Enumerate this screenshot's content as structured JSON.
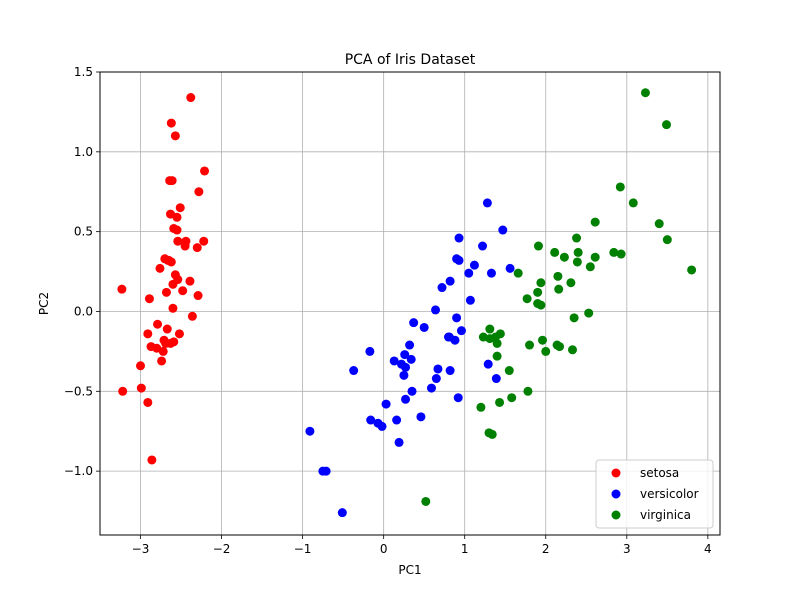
{
  "chart_data": {
    "type": "scatter",
    "title": "PCA of Iris Dataset",
    "xlabel": "PC1",
    "ylabel": "PC2",
    "xlim": [
      -3.5,
      4.15
    ],
    "ylim": [
      -1.4,
      1.5
    ],
    "xticks": [
      -3,
      -2,
      -1,
      0,
      1,
      2,
      3,
      4
    ],
    "xtick_labels": [
      "−3",
      "−2",
      "−1",
      "0",
      "1",
      "2",
      "3",
      "4"
    ],
    "yticks": [
      -1.0,
      -0.5,
      0.0,
      0.5,
      1.0,
      1.5
    ],
    "ytick_labels": [
      "−1.0",
      "−0.5",
      "0.0",
      "0.5",
      "1.0",
      "1.5"
    ],
    "grid": true,
    "legend_position": "lower-right",
    "series": [
      {
        "name": "setosa",
        "color": "#ff0000",
        "points": [
          [
            -2.38,
            1.34
          ],
          [
            -2.62,
            1.18
          ],
          [
            -2.57,
            1.1
          ],
          [
            -2.21,
            0.88
          ],
          [
            -2.64,
            0.82
          ],
          [
            -2.61,
            0.82
          ],
          [
            -2.28,
            0.75
          ],
          [
            -2.51,
            0.65
          ],
          [
            -2.63,
            0.61
          ],
          [
            -2.55,
            0.59
          ],
          [
            -2.59,
            0.52
          ],
          [
            -2.55,
            0.51
          ],
          [
            -2.44,
            0.44
          ],
          [
            -2.22,
            0.44
          ],
          [
            -2.54,
            0.44
          ],
          [
            -2.45,
            0.41
          ],
          [
            -2.3,
            0.4
          ],
          [
            -2.7,
            0.33
          ],
          [
            -2.65,
            0.32
          ],
          [
            -2.62,
            0.31
          ],
          [
            -2.76,
            0.27
          ],
          [
            -2.57,
            0.23
          ],
          [
            -2.54,
            0.2
          ],
          [
            -2.39,
            0.19
          ],
          [
            -2.6,
            0.17
          ],
          [
            -2.48,
            0.13
          ],
          [
            -2.68,
            0.12
          ],
          [
            -2.29,
            0.1
          ],
          [
            -2.89,
            0.08
          ],
          [
            -2.6,
            0.02
          ],
          [
            -2.36,
            -0.03
          ],
          [
            -2.79,
            -0.08
          ],
          [
            -2.67,
            -0.11
          ],
          [
            -2.52,
            -0.14
          ],
          [
            -2.91,
            -0.14
          ],
          [
            -2.71,
            -0.18
          ],
          [
            -2.59,
            -0.19
          ],
          [
            -2.63,
            -0.2
          ],
          [
            -2.87,
            -0.22
          ],
          [
            -2.8,
            -0.23
          ],
          [
            -2.72,
            -0.25
          ],
          [
            -2.74,
            -0.31
          ],
          [
            -3.0,
            -0.34
          ],
          [
            -2.99,
            -0.48
          ],
          [
            -3.22,
            -0.5
          ],
          [
            -2.91,
            -0.57
          ],
          [
            -2.86,
            -0.93
          ],
          [
            -3.23,
            0.14
          ],
          [
            -2.69,
            -0.2
          ],
          [
            -2.66,
            0.32
          ]
        ]
      },
      {
        "name": "versicolor",
        "color": "#0000ff",
        "points": [
          [
            1.28,
            0.68
          ],
          [
            1.47,
            0.51
          ],
          [
            0.93,
            0.46
          ],
          [
            1.22,
            0.41
          ],
          [
            0.9,
            0.33
          ],
          [
            0.93,
            0.32
          ],
          [
            1.12,
            0.29
          ],
          [
            1.56,
            0.27
          ],
          [
            1.33,
            0.24
          ],
          [
            1.05,
            0.24
          ],
          [
            0.82,
            0.19
          ],
          [
            0.72,
            0.15
          ],
          [
            1.07,
            0.07
          ],
          [
            0.64,
            0.01
          ],
          [
            0.9,
            -0.04
          ],
          [
            0.37,
            -0.07
          ],
          [
            0.5,
            -0.1
          ],
          [
            0.96,
            -0.12
          ],
          [
            0.81,
            -0.16
          ],
          [
            0.88,
            -0.18
          ],
          [
            0.32,
            -0.21
          ],
          [
            -0.17,
            -0.25
          ],
          [
            0.26,
            -0.27
          ],
          [
            0.34,
            -0.3
          ],
          [
            0.13,
            -0.31
          ],
          [
            0.22,
            -0.33
          ],
          [
            0.27,
            -0.35
          ],
          [
            0.67,
            -0.36
          ],
          [
            1.29,
            -0.33
          ],
          [
            -0.37,
            -0.37
          ],
          [
            0.82,
            -0.37
          ],
          [
            0.25,
            -0.4
          ],
          [
            0.65,
            -0.42
          ],
          [
            1.39,
            -0.42
          ],
          [
            0.59,
            -0.48
          ],
          [
            0.35,
            -0.5
          ],
          [
            0.92,
            -0.54
          ],
          [
            0.27,
            -0.55
          ],
          [
            0.03,
            -0.58
          ],
          [
            0.46,
            -0.66
          ],
          [
            0.16,
            -0.68
          ],
          [
            -0.16,
            -0.68
          ],
          [
            -0.07,
            -0.7
          ],
          [
            -0.02,
            -0.72
          ],
          [
            0.19,
            -0.82
          ],
          [
            -0.91,
            -0.75
          ],
          [
            -0.75,
            -1.0
          ],
          [
            -0.71,
            -1.0
          ],
          [
            -0.51,
            -1.26
          ],
          [
            0.8,
            -0.16
          ]
        ]
      },
      {
        "name": "virginica",
        "color": "#008000",
        "points": [
          [
            3.23,
            1.37
          ],
          [
            3.49,
            1.17
          ],
          [
            2.92,
            0.78
          ],
          [
            3.08,
            0.68
          ],
          [
            2.61,
            0.56
          ],
          [
            3.4,
            0.55
          ],
          [
            2.38,
            0.46
          ],
          [
            3.5,
            0.45
          ],
          [
            1.91,
            0.41
          ],
          [
            2.11,
            0.37
          ],
          [
            2.4,
            0.37
          ],
          [
            2.84,
            0.37
          ],
          [
            2.93,
            0.36
          ],
          [
            2.23,
            0.34
          ],
          [
            2.61,
            0.34
          ],
          [
            2.39,
            0.31
          ],
          [
            2.55,
            0.28
          ],
          [
            3.8,
            0.26
          ],
          [
            1.66,
            0.24
          ],
          [
            2.15,
            0.22
          ],
          [
            1.94,
            0.18
          ],
          [
            2.31,
            0.18
          ],
          [
            2.16,
            0.14
          ],
          [
            1.9,
            0.12
          ],
          [
            1.77,
            0.08
          ],
          [
            1.9,
            0.05
          ],
          [
            1.94,
            0.04
          ],
          [
            2.53,
            -0.01
          ],
          [
            2.35,
            -0.04
          ],
          [
            1.31,
            -0.11
          ],
          [
            1.44,
            -0.14
          ],
          [
            1.23,
            -0.16
          ],
          [
            1.31,
            -0.17
          ],
          [
            1.96,
            -0.18
          ],
          [
            1.4,
            -0.2
          ],
          [
            2.14,
            -0.21
          ],
          [
            1.8,
            -0.21
          ],
          [
            2.17,
            -0.22
          ],
          [
            2.33,
            -0.24
          ],
          [
            1.4,
            -0.28
          ],
          [
            1.55,
            -0.37
          ],
          [
            1.78,
            -0.5
          ],
          [
            1.58,
            -0.54
          ],
          [
            1.43,
            -0.57
          ],
          [
            1.2,
            -0.6
          ],
          [
            1.3,
            -0.76
          ],
          [
            1.34,
            -0.77
          ],
          [
            0.52,
            -1.19
          ],
          [
            1.38,
            -0.16
          ],
          [
            2.0,
            -0.25
          ]
        ]
      }
    ]
  }
}
